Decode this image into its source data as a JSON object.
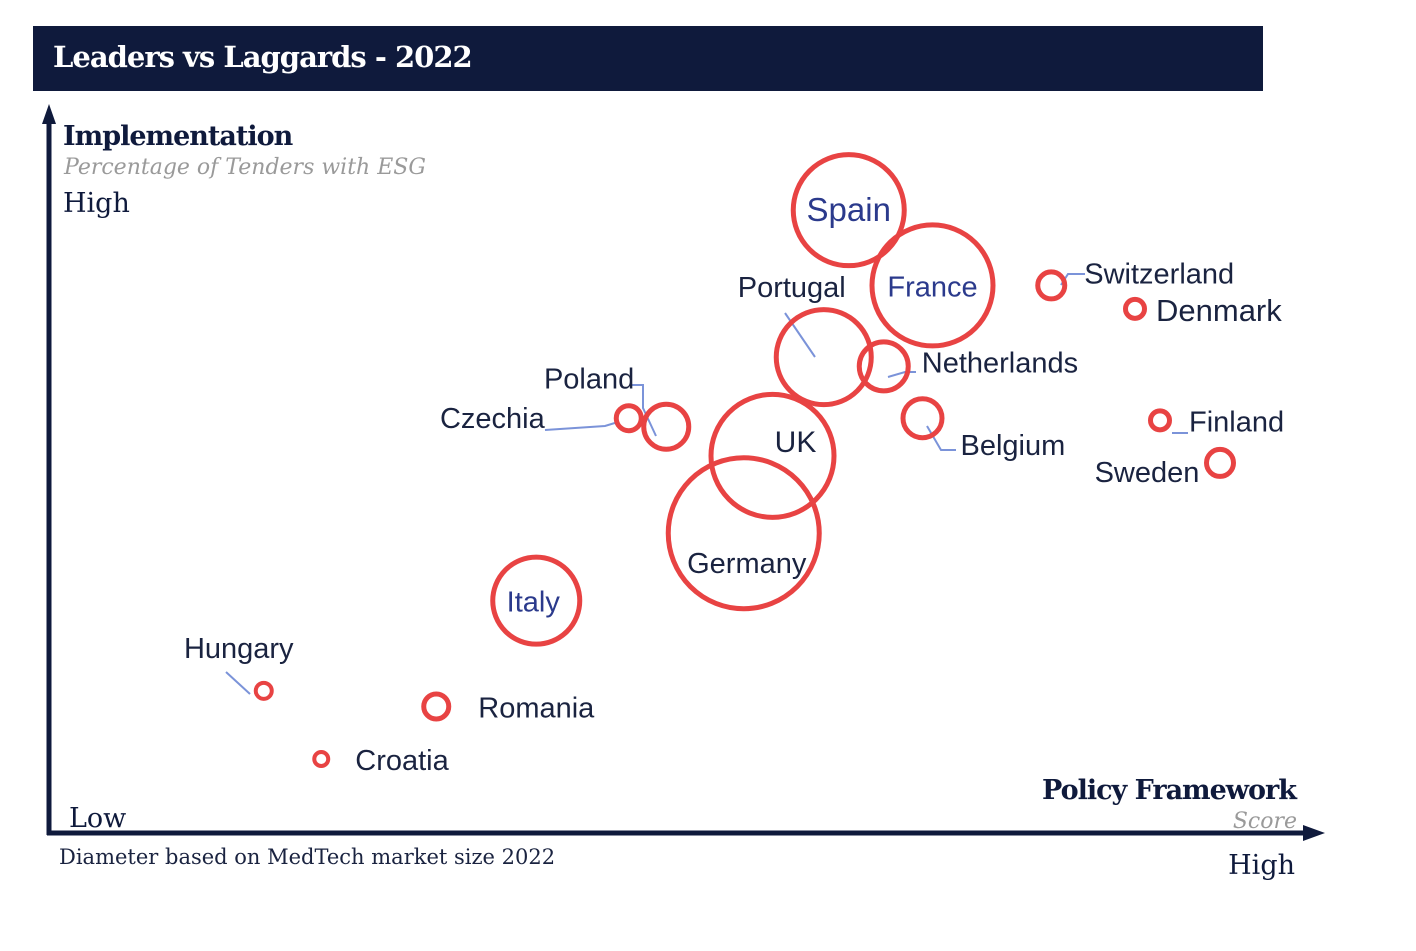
{
  "title": "Leaders vs Laggards - 2022",
  "y_axis": {
    "title": "Implementation",
    "subtitle": "Percentage of Tenders with ESG",
    "high_label": "High"
  },
  "x_axis": {
    "title": "Policy Framework",
    "subtitle": "Score",
    "low_label": "Low",
    "high_label": "High"
  },
  "footnote": "Diameter based on MedTech market size 2022",
  "colors": {
    "header_bg": "#0f1a3c",
    "bubble": "#e84343",
    "leader_line": "#7b93d9",
    "label_dark": "#1a2340",
    "label_accent": "#2b3a8c"
  },
  "chart_data": {
    "type": "scatter",
    "title": "Leaders vs Laggards - 2022",
    "xlabel": "Policy Framework",
    "ylabel": "Implementation",
    "xlim": [
      0,
      100
    ],
    "ylim": [
      0,
      100
    ],
    "size_meaning": "Diameter based on MedTech market size 2022",
    "points": [
      {
        "label": "Spain",
        "x": 63.1,
        "y": 87.3,
        "size": 58
      },
      {
        "label": "France",
        "x": 69.8,
        "y": 76.7,
        "size": 63
      },
      {
        "label": "Switzerland",
        "x": 79.3,
        "y": 76.7,
        "size": 16
      },
      {
        "label": "Denmark",
        "x": 86.0,
        "y": 73.4,
        "size": 12
      },
      {
        "label": "Portugal",
        "x": 61.1,
        "y": 66.6,
        "size": 50
      },
      {
        "label": "Netherlands",
        "x": 65.9,
        "y": 65.3,
        "size": 27
      },
      {
        "label": "Poland",
        "x": 48.5,
        "y": 56.8,
        "size": 25
      },
      {
        "label": "Czechia",
        "x": 45.5,
        "y": 58.0,
        "size": 15
      },
      {
        "label": "UK",
        "x": 57.0,
        "y": 52.7,
        "size": 64
      },
      {
        "label": "Belgium",
        "x": 69.0,
        "y": 58.0,
        "size": 22
      },
      {
        "label": "Finland",
        "x": 88.0,
        "y": 57.7,
        "size": 12
      },
      {
        "label": "Sweden",
        "x": 92.8,
        "y": 51.7,
        "size": 16
      },
      {
        "label": "Germany",
        "x": 54.7,
        "y": 41.8,
        "size": 78
      },
      {
        "label": "Italy",
        "x": 38.1,
        "y": 32.3,
        "size": 46
      },
      {
        "label": "Hungary",
        "x": 16.3,
        "y": 19.6,
        "size": 10
      },
      {
        "label": "Romania",
        "x": 30.1,
        "y": 17.4,
        "size": 15
      },
      {
        "label": "Croatia",
        "x": 20.9,
        "y": 10.0,
        "size": 9
      }
    ]
  }
}
